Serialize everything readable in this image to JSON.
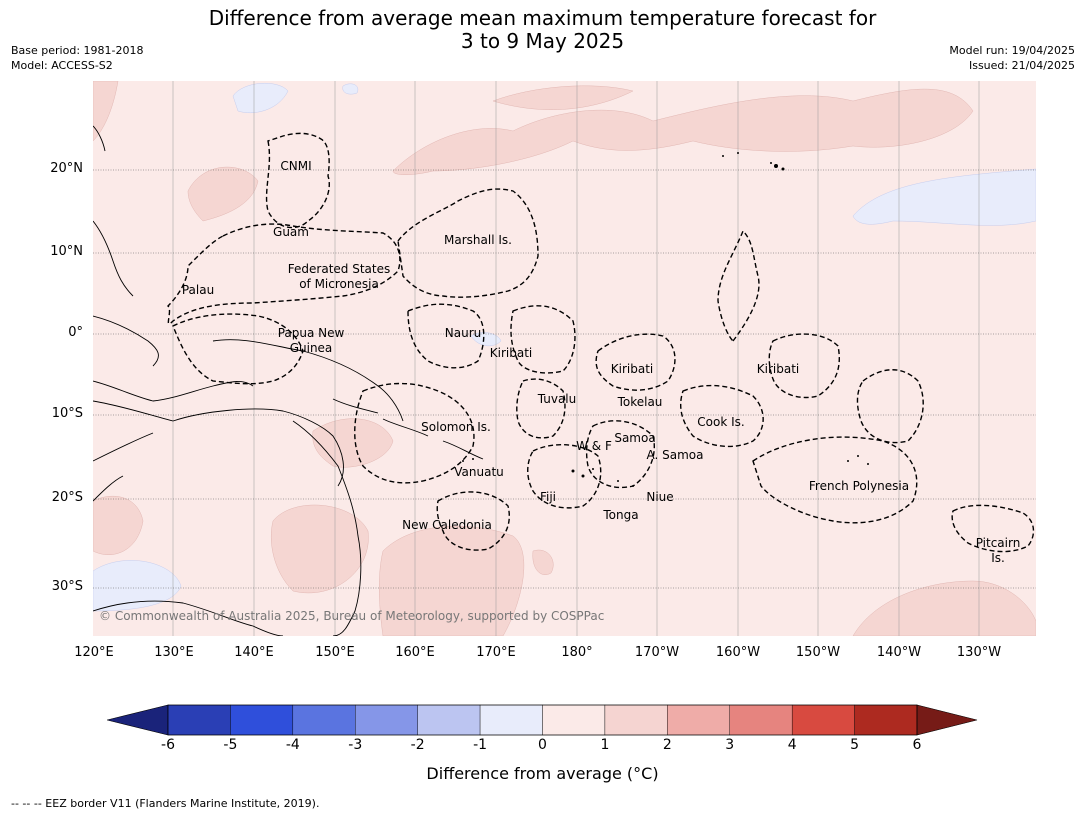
{
  "title_line1": "Difference from average mean maximum temperature forecast for",
  "title_line2": "3 to 9 May 2025",
  "base_period": "Base period: 1981-2018",
  "model": "Model: ACCESS-S2",
  "model_run": "Model run: 19/04/2025",
  "issued": "Issued: 21/04/2025",
  "copyright": "© Commonwealth of Australia 2025, Bureau of Meteorology, supported by COSPPac",
  "lat_labels": [
    "20°N",
    "10°N",
    "0°",
    "10°S",
    "20°S",
    "30°S"
  ],
  "lon_labels": [
    "120°E",
    "130°E",
    "140°E",
    "150°E",
    "160°E",
    "170°E",
    "180°",
    "170°W",
    "160°W",
    "150°W",
    "140°W",
    "130°W"
  ],
  "regions": {
    "cnmi": "CNMI",
    "guam": "Guam",
    "marshall": "Marshall Is.",
    "fsm_1": "Federated States",
    "fsm_2": "of Micronesia",
    "palau": "Palau",
    "png_1": "Papua New",
    "png_2": "Guinea",
    "nauru": "Nauru",
    "kiribati_w": "Kiribati",
    "kiribati_c": "Kiribati",
    "kiribati_e": "Kiribati",
    "tuvalu": "Tuvalu",
    "tokelau": "Tokelau",
    "cook": "Cook Is.",
    "solomon": "Solomon Is.",
    "samoa": "Samoa",
    "wf": "W & F",
    "asamoa": "A. Samoa",
    "vanuatu": "Vanuatu",
    "fiji": "Fiji",
    "niue": "Niue",
    "tonga": "Tonga",
    "frpoly": "French Polynesia",
    "newcal": "New Caledonia",
    "pitcairn_1": "Pitcairn",
    "pitcairn_2": "Is."
  },
  "colorbar": {
    "ticks": [
      "-6",
      "-5",
      "-4",
      "-3",
      "-2",
      "-1",
      "0",
      "1",
      "2",
      "3",
      "4",
      "5",
      "6"
    ],
    "colors": [
      "#1a237a",
      "#2a3fb5",
      "#2f4fdb",
      "#5a74e0",
      "#8596e8",
      "#bcc5f1",
      "#e8ecfb",
      "#fbeae8",
      "#f5d4d1",
      "#efaca8",
      "#e6847f",
      "#d84a40",
      "#ad2a20",
      "#761b17"
    ],
    "label": "Difference from average (°C)"
  },
  "footnote": "--  --  -- EEZ border V11 (Flanders Marine Institute, 2019)."
}
